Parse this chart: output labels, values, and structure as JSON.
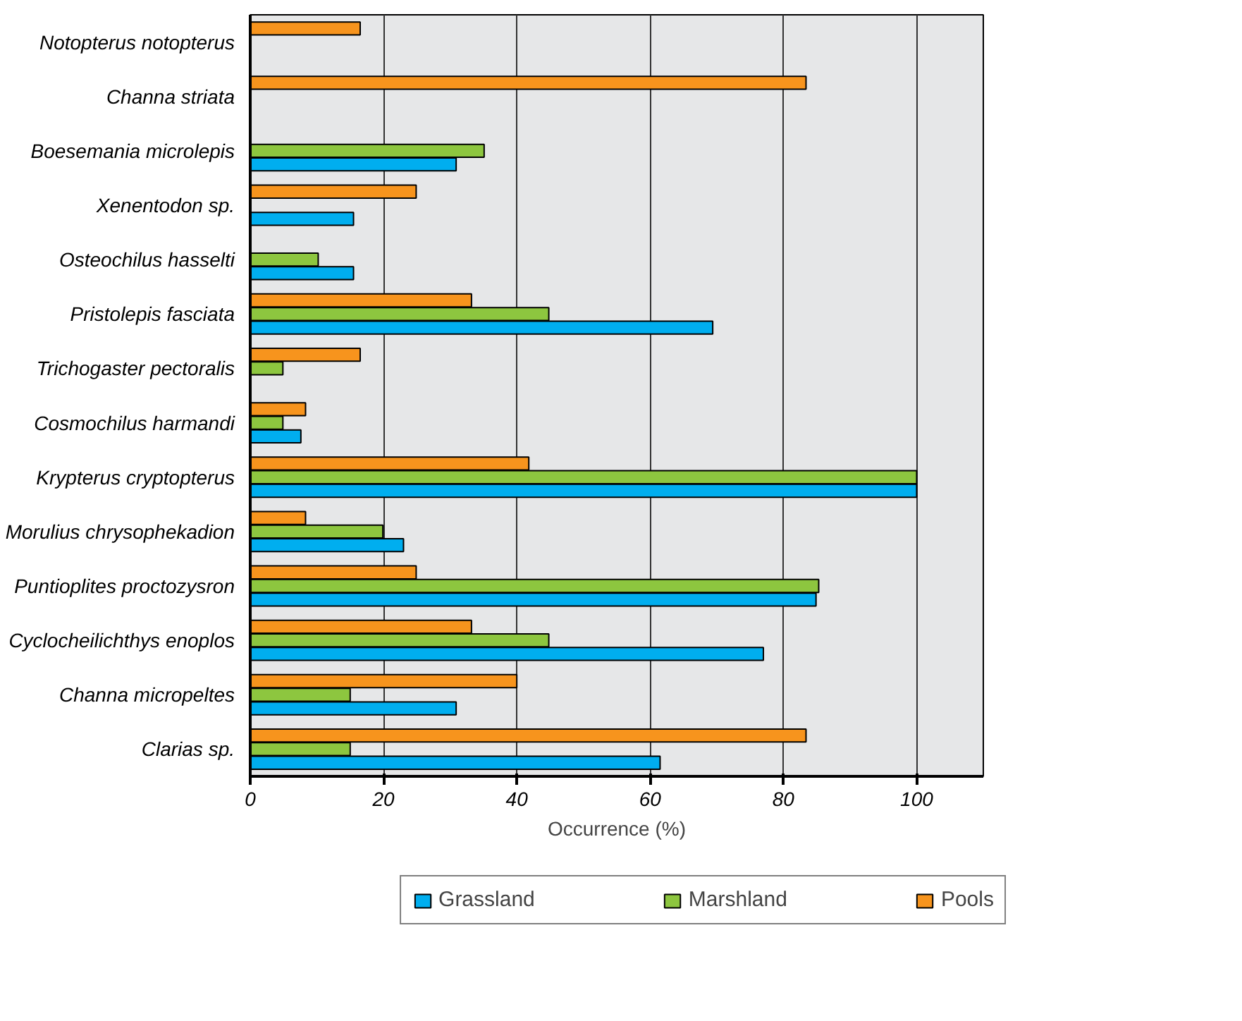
{
  "chart_data": {
    "type": "bar",
    "orientation": "horizontal",
    "xlabel": "Occurrence (%)",
    "categories": [
      "Notopterus notopterus",
      "Channa striata",
      "Boesemania microlepis",
      "Xenentodon sp.",
      "Osteochilus hasselti",
      "Pristolepis fasciata",
      "Trichogaster pectoralis",
      "Cosmochilus harmandi",
      "Krypterus cryptopterus",
      "Morulius chrysophekadion",
      "Puntioplites proctozysron",
      "Cyclocheilichthys enoplos",
      "Channa micropeltes",
      "Clarias sp."
    ],
    "series": [
      {
        "name": "Grassland",
        "color": "#00aeef",
        "values": [
          null,
          null,
          30.9,
          15.5,
          15.5,
          69.4,
          null,
          7.6,
          100,
          23,
          84.9,
          77,
          30.9,
          61.5
        ]
      },
      {
        "name": "Marshland",
        "color": "#8dc63f",
        "values": [
          null,
          null,
          35.1,
          null,
          10.2,
          44.8,
          4.9,
          4.9,
          100,
          19.9,
          85.3,
          44.8,
          15,
          15
        ]
      },
      {
        "name": "Pools",
        "color": "#f7941d",
        "values": [
          16.5,
          83.4,
          null,
          24.9,
          null,
          33.2,
          16.5,
          8.3,
          41.8,
          8.3,
          24.9,
          33.2,
          40,
          83.4
        ]
      }
    ],
    "xlim": [
      0,
      110
    ],
    "xticks": [
      0,
      20,
      40,
      60,
      80,
      100
    ],
    "grid": "x",
    "legend": "bottom"
  }
}
